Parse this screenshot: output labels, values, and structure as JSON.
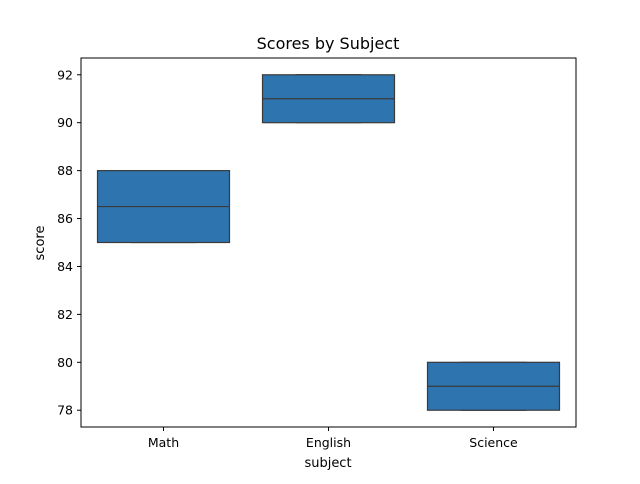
{
  "chart_data": {
    "type": "box",
    "title": "Scores by Subject",
    "xlabel": "subject",
    "ylabel": "score",
    "categories": [
      "Math",
      "English",
      "Science"
    ],
    "boxes": [
      {
        "category": "Math",
        "min": 85,
        "q1": 85,
        "median": 86.5,
        "q3": 88,
        "max": 88
      },
      {
        "category": "English",
        "min": 90,
        "q1": 90,
        "median": 91,
        "q3": 92,
        "max": 92
      },
      {
        "category": "Science",
        "min": 78,
        "q1": 78,
        "median": 79,
        "q3": 80,
        "max": 80
      }
    ],
    "ylim": [
      77.3,
      92.7
    ],
    "yticks": [
      78,
      80,
      82,
      84,
      86,
      88,
      90,
      92
    ],
    "grid": false,
    "legend": "none",
    "colors": {
      "box_fill": "#2e75b0",
      "box_edge": "#3a3a3a",
      "axis": "#000000"
    }
  }
}
